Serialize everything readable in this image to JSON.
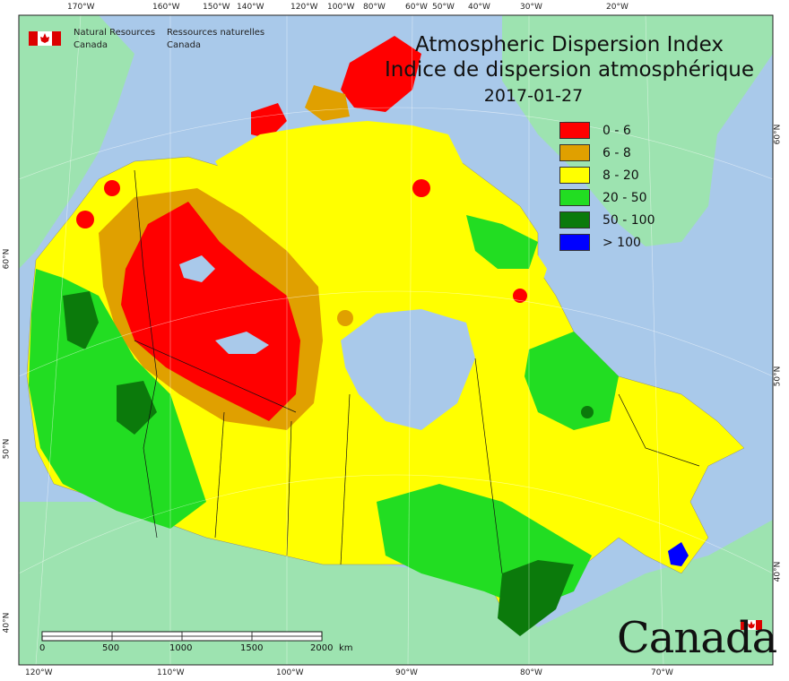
{
  "agency": {
    "en_line1": "Natural Resources",
    "en_line2": "Canada",
    "fr_line1": "Ressources naturelles",
    "fr_line2": "Canada"
  },
  "title_en": "Atmospheric Dispersion Index",
  "title_fr": "Indice de dispersion atmosphérique",
  "date": "2017-01-27",
  "legend": [
    {
      "label": "0 - 6",
      "color": "#ff0000"
    },
    {
      "label": "6 - 8",
      "color": "#e0a000"
    },
    {
      "label": "8 - 20",
      "color": "#ffff00"
    },
    {
      "label": "20 - 50",
      "color": "#22dd22"
    },
    {
      "label": "50 - 100",
      "color": "#0b7a0b"
    },
    {
      "label": "> 100",
      "color": "#0000ff"
    }
  ],
  "top_lon_labels": [
    "170°W",
    "160°W",
    "150°W",
    "140°W",
    "120°W",
    "100°W",
    "80°W",
    "60°W",
    "50°W",
    "40°W",
    "30°W",
    "20°W"
  ],
  "bottom_lon_labels": [
    "120°W",
    "110°W",
    "100°W",
    "90°W",
    "80°W",
    "70°W"
  ],
  "left_lat_labels": [
    "60°N",
    "50°N",
    "40°N"
  ],
  "right_lat_labels": [
    "60°N",
    "50°N",
    "40°N"
  ],
  "scale_bar": {
    "ticks": [
      "0",
      "500",
      "1000",
      "1500",
      "2000"
    ],
    "unit": "km"
  },
  "wordmark": "Canada",
  "colors": {
    "ocean": "#a9c9ea",
    "land": "#9de3b0",
    "border": "#111111"
  }
}
